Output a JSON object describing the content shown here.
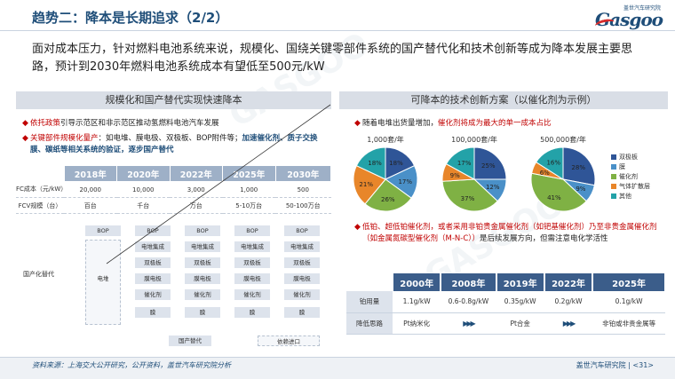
{
  "title": "趋势二：降本是长期追求（2/2）",
  "logo": {
    "cn": "盖世汽车研究院",
    "en": "Gasgoo"
  },
  "intro": "面对成本压力，针对燃料电池系统来说，规模化、国绕关键零部件系统的国产替代化和技术创新等成为降本发展主要思路，预计到2030年燃料电池系统成本有望低至500元/kW",
  "left_panel": {
    "header": "规模化和国产替代实现快速降本",
    "bullet1": {
      "a": "依托政策",
      "b": "引导示范区和非示范区推动氢燃料电池汽车发展"
    },
    "bullet2": {
      "a": "关键部件规模化量产",
      "b": "：如电堆、膜电极、双极板、BOP附件等；",
      "c": "加速催化剂、质子交换膜、碳纸等相关系统的验证，逐步国产替代"
    },
    "years": [
      "2018年",
      "2020年",
      "2022年",
      "2025年",
      "2030年"
    ],
    "row_cost_label": "FC成本（元/kW）",
    "row_cost": [
      "20,000",
      "10,000",
      "3,000",
      "1,000",
      "500"
    ],
    "row_vol_label": "FCV规模（台）",
    "row_vol": [
      "百台",
      "千台",
      "万台",
      "5-10万台",
      "50-100万台"
    ],
    "localization_label": "国产化替代",
    "cells": {
      "bop": "BOP",
      "stack": "电堆",
      "stack_int": "电堆集成",
      "bipolar": "双极板",
      "mea": "膜电极",
      "catalyst": "催化剂",
      "membrane": "膜"
    },
    "legend_domestic": "国产替代",
    "legend_import": "依赖进口"
  },
  "right_panel": {
    "header": "可降本的技术创新方案（以催化剂为示例）",
    "bullet1": {
      "a": "随着电堆出货量增加，",
      "b": "催化剂将成为最大的单一成本占比"
    },
    "bullet2": {
      "a": "低铂、超低铂催化剂，或者采用非铂贵金属催化剂（如钯基催化剂）乃至非贵金属催化剂（如金属氮碳型催化剂（M-N-C））",
      "b": "是后续发展方向，但需注意电化学活性"
    },
    "legend": [
      {
        "name": "双极板",
        "color": "#2f5597"
      },
      {
        "name": "膜",
        "color": "#4a90c8"
      },
      {
        "name": "催化剂",
        "color": "#7fb144"
      },
      {
        "name": "气体扩散层",
        "color": "#e8862a"
      },
      {
        "name": "其他",
        "color": "#23a2a8"
      }
    ],
    "cat_table": {
      "years": [
        "2000年",
        "2008年",
        "2019年",
        "2022年",
        "2025年"
      ],
      "loading_label": "铂用量",
      "loading": [
        "1.1g/kW",
        "0.6-0.8g/kW",
        "0.35g/kW",
        "0.2g/kW",
        "0.1g/kW"
      ],
      "path_label": "降低思路",
      "path": [
        "Pt纳米化",
        "Pt合金",
        "非铂或非贵金属等"
      ]
    }
  },
  "chart_data": [
    {
      "type": "pie",
      "title": "1,000套/年",
      "categories": [
        "双极板",
        "膜",
        "催化剂",
        "气体扩散层",
        "其他"
      ],
      "values": [
        18,
        17,
        26,
        21,
        18
      ]
    },
    {
      "type": "pie",
      "title": "100,000套/年",
      "categories": [
        "双极板",
        "膜",
        "催化剂",
        "气体扩散层",
        "其他"
      ],
      "values": [
        25,
        12,
        37,
        9,
        17
      ]
    },
    {
      "type": "pie",
      "title": "500,000套/年",
      "categories": [
        "双极板",
        "膜",
        "催化剂",
        "气体扩散层",
        "其他"
      ],
      "values": [
        28,
        9,
        41,
        6,
        16
      ]
    }
  ],
  "footer": {
    "source": "资料来源：上海交大公开研究，公开资料，盖世汽车研究院分析",
    "page": "盖世汽车研究院 | <31>"
  }
}
